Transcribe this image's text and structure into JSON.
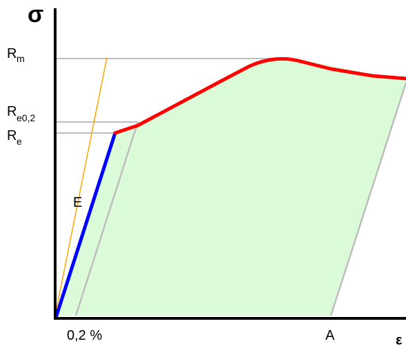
{
  "diagram": {
    "type": "stress-strain",
    "y_axis_symbol": "σ",
    "x_axis_symbol": "ε",
    "labels": {
      "rm": {
        "main": "R",
        "sub": "m"
      },
      "re02": {
        "main": "R",
        "sub": "e0,2"
      },
      "re": {
        "main": "R",
        "sub": "e"
      },
      "modulus": "E",
      "offset": "0,2 %",
      "elongation": "A"
    },
    "colors": {
      "elastic_curve": "#0000ff",
      "plastic_curve": "#ff0000",
      "modulus_line": "#ffa500",
      "reference_lines": "#bdbdbd",
      "area_fill": "#dbfad8",
      "axes": "#000000"
    }
  }
}
